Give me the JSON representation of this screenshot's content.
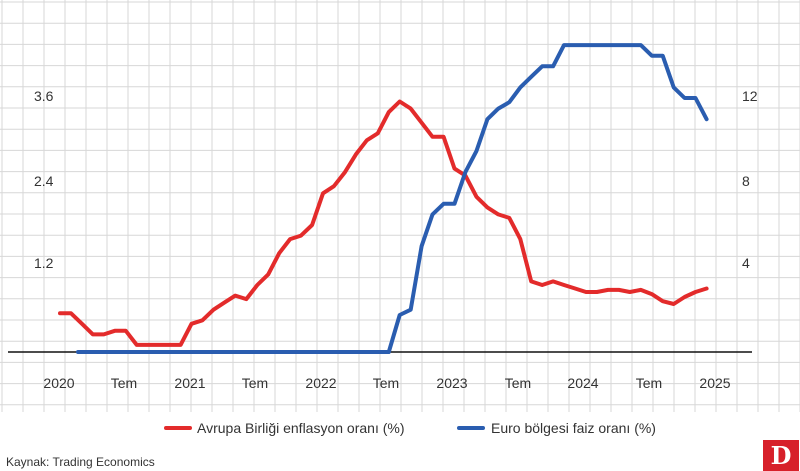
{
  "chart_data": {
    "type": "line",
    "x_labels": [
      "2020",
      "Tem",
      "2021",
      "Tem",
      "2022",
      "Tem",
      "2023",
      "Tem",
      "2024",
      "Tem",
      "2025"
    ],
    "y_left": {
      "ticks": [
        "1.2",
        "2.4",
        "3.6"
      ],
      "tick_values": [
        1.2,
        2.4,
        3.6
      ],
      "range": [
        -0.6,
        4.8
      ]
    },
    "y_right": {
      "ticks": [
        "4",
        "8",
        "12"
      ],
      "tick_values": [
        4,
        8,
        12
      ],
      "range": [
        -2,
        16
      ]
    },
    "grid": true,
    "legend_position": "bottom",
    "series": [
      {
        "name": "Avrupa Birliği enflasyon oranı (%)",
        "axis": "left",
        "color": "#e32b2b",
        "x": [
          2020.0,
          2020.083,
          2020.167,
          2020.25,
          2020.333,
          2020.417,
          2020.5,
          2020.583,
          2020.667,
          2020.75,
          2020.833,
          2020.917,
          2021.0,
          2021.083,
          2021.167,
          2021.25,
          2021.333,
          2021.417,
          2021.5,
          2021.583,
          2021.667,
          2021.75,
          2021.833,
          2021.917,
          2022.0,
          2022.083,
          2022.167,
          2022.25,
          2022.333,
          2022.417,
          2022.5,
          2022.583,
          2022.667,
          2022.75,
          2022.833,
          2022.917,
          2023.0,
          2023.083,
          2023.167,
          2023.25,
          2023.333,
          2023.417,
          2023.5,
          2023.583,
          2023.667,
          2023.75,
          2023.833,
          2023.917,
          2024.0,
          2024.083,
          2024.167,
          2024.25,
          2024.333,
          2024.417,
          2024.5,
          2024.583,
          2024.667,
          2024.75,
          2024.833,
          2024.917
        ],
        "y": [
          0.55,
          0.55,
          0.4,
          0.25,
          0.25,
          0.3,
          0.3,
          0.1,
          0.1,
          0.1,
          0.1,
          0.1,
          0.4,
          0.45,
          0.6,
          0.7,
          0.8,
          0.75,
          0.95,
          1.1,
          1.4,
          1.6,
          1.65,
          1.8,
          2.25,
          2.35,
          2.55,
          2.8,
          3.0,
          3.1,
          3.4,
          3.55,
          3.45,
          3.25,
          3.05,
          3.05,
          2.6,
          2.5,
          2.2,
          2.05,
          1.95,
          1.9,
          1.6,
          1.0,
          0.95,
          1.0,
          0.95,
          0.9,
          0.85,
          0.85,
          0.88,
          0.88,
          0.85,
          0.88,
          0.82,
          0.72,
          0.68,
          0.78,
          0.85,
          0.9
        ]
      },
      {
        "name": "Euro bölgesi faiz oranı (%)",
        "axis": "right",
        "color": "#2a5db0",
        "x": [
          2020.0,
          2022.5,
          2022.583,
          2022.667,
          2022.75,
          2022.833,
          2022.917,
          2023.0,
          2023.083,
          2023.167,
          2023.25,
          2023.333,
          2023.417,
          2023.5,
          2023.583,
          2023.667,
          2023.75,
          2023.833,
          2023.917,
          2024.0,
          2024.083,
          2024.167,
          2024.25,
          2024.333,
          2024.417,
          2024.5,
          2024.583,
          2024.667,
          2024.75,
          2024.833,
          2024.917
        ],
        "y": [
          0.0,
          0.0,
          1.75,
          2.0,
          5.0,
          6.5,
          7.0,
          7.0,
          8.5,
          9.5,
          11.0,
          11.5,
          11.8,
          12.5,
          13.0,
          13.5,
          13.5,
          14.5,
          14.5,
          14.5,
          14.5,
          14.5,
          14.5,
          14.5,
          14.5,
          14.0,
          14.0,
          12.5,
          12.0,
          12.0,
          11.0
        ]
      }
    ]
  },
  "source": "Kaynak: Trading Economics",
  "logo_text": "D"
}
